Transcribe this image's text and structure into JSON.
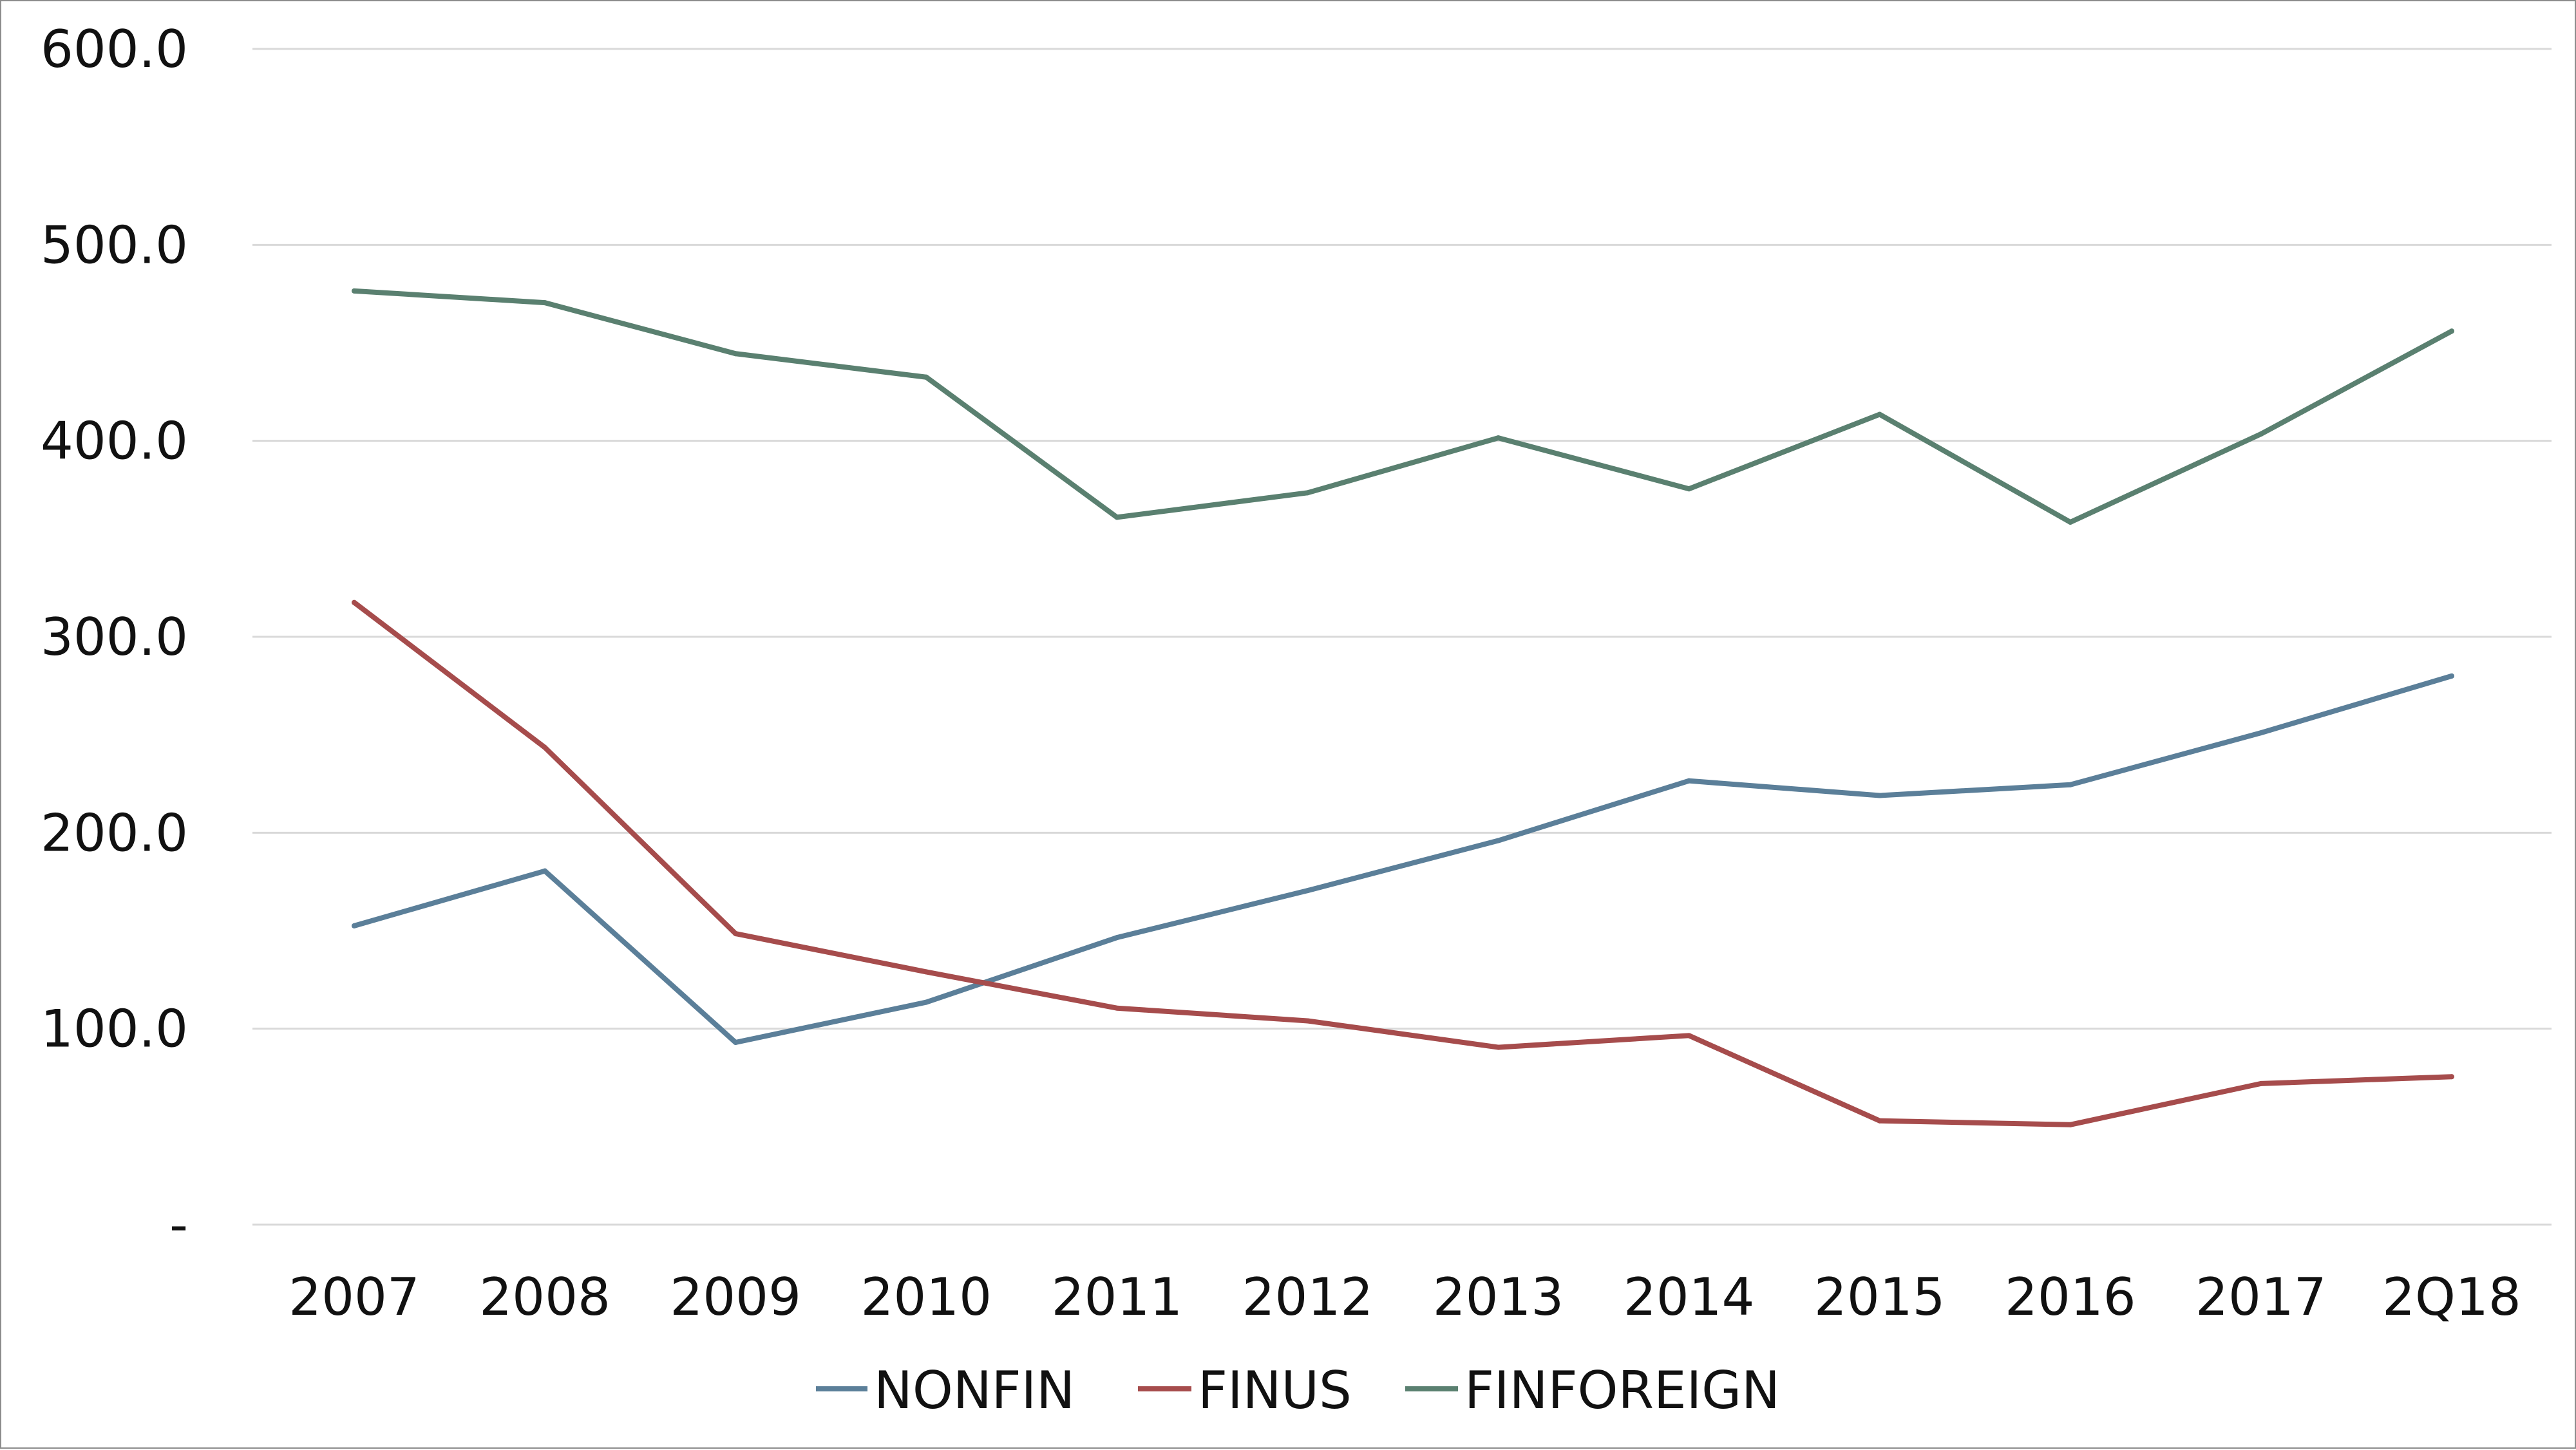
{
  "chart_data": {
    "type": "line",
    "categories": [
      "2007",
      "2008",
      "2009",
      "2010",
      "2011",
      "2012",
      "2013",
      "2014",
      "2015",
      "2016",
      "2017",
      "2Q18"
    ],
    "ylim": [
      0,
      600
    ],
    "yticks": [
      0,
      100,
      200,
      300,
      400,
      500,
      600
    ],
    "ytick_labels": [
      "-",
      "100.0",
      "200.0",
      "300.0",
      "400.0",
      "500.0",
      "600.0"
    ],
    "grid": true,
    "legend_position": "bottom",
    "series": [
      {
        "name": "NONFIN",
        "color": "#5b7f99",
        "values": [
          152.5,
          180.5,
          93.0,
          113.5,
          146.5,
          170.5,
          196.0,
          226.5,
          219.0,
          224.5,
          251.0,
          280.0
        ]
      },
      {
        "name": "FINUS",
        "color": "#a64c4c",
        "values": [
          317.5,
          243.5,
          148.5,
          129.0,
          110.5,
          104.0,
          90.5,
          96.5,
          53.0,
          51.0,
          72.0,
          75.5
        ]
      },
      {
        "name": "FINFOREIGN",
        "color": "#5a8070",
        "values": [
          476.5,
          470.5,
          444.5,
          432.5,
          361.0,
          373.5,
          401.5,
          375.5,
          413.5,
          358.5,
          403.5,
          456.0
        ]
      }
    ]
  }
}
